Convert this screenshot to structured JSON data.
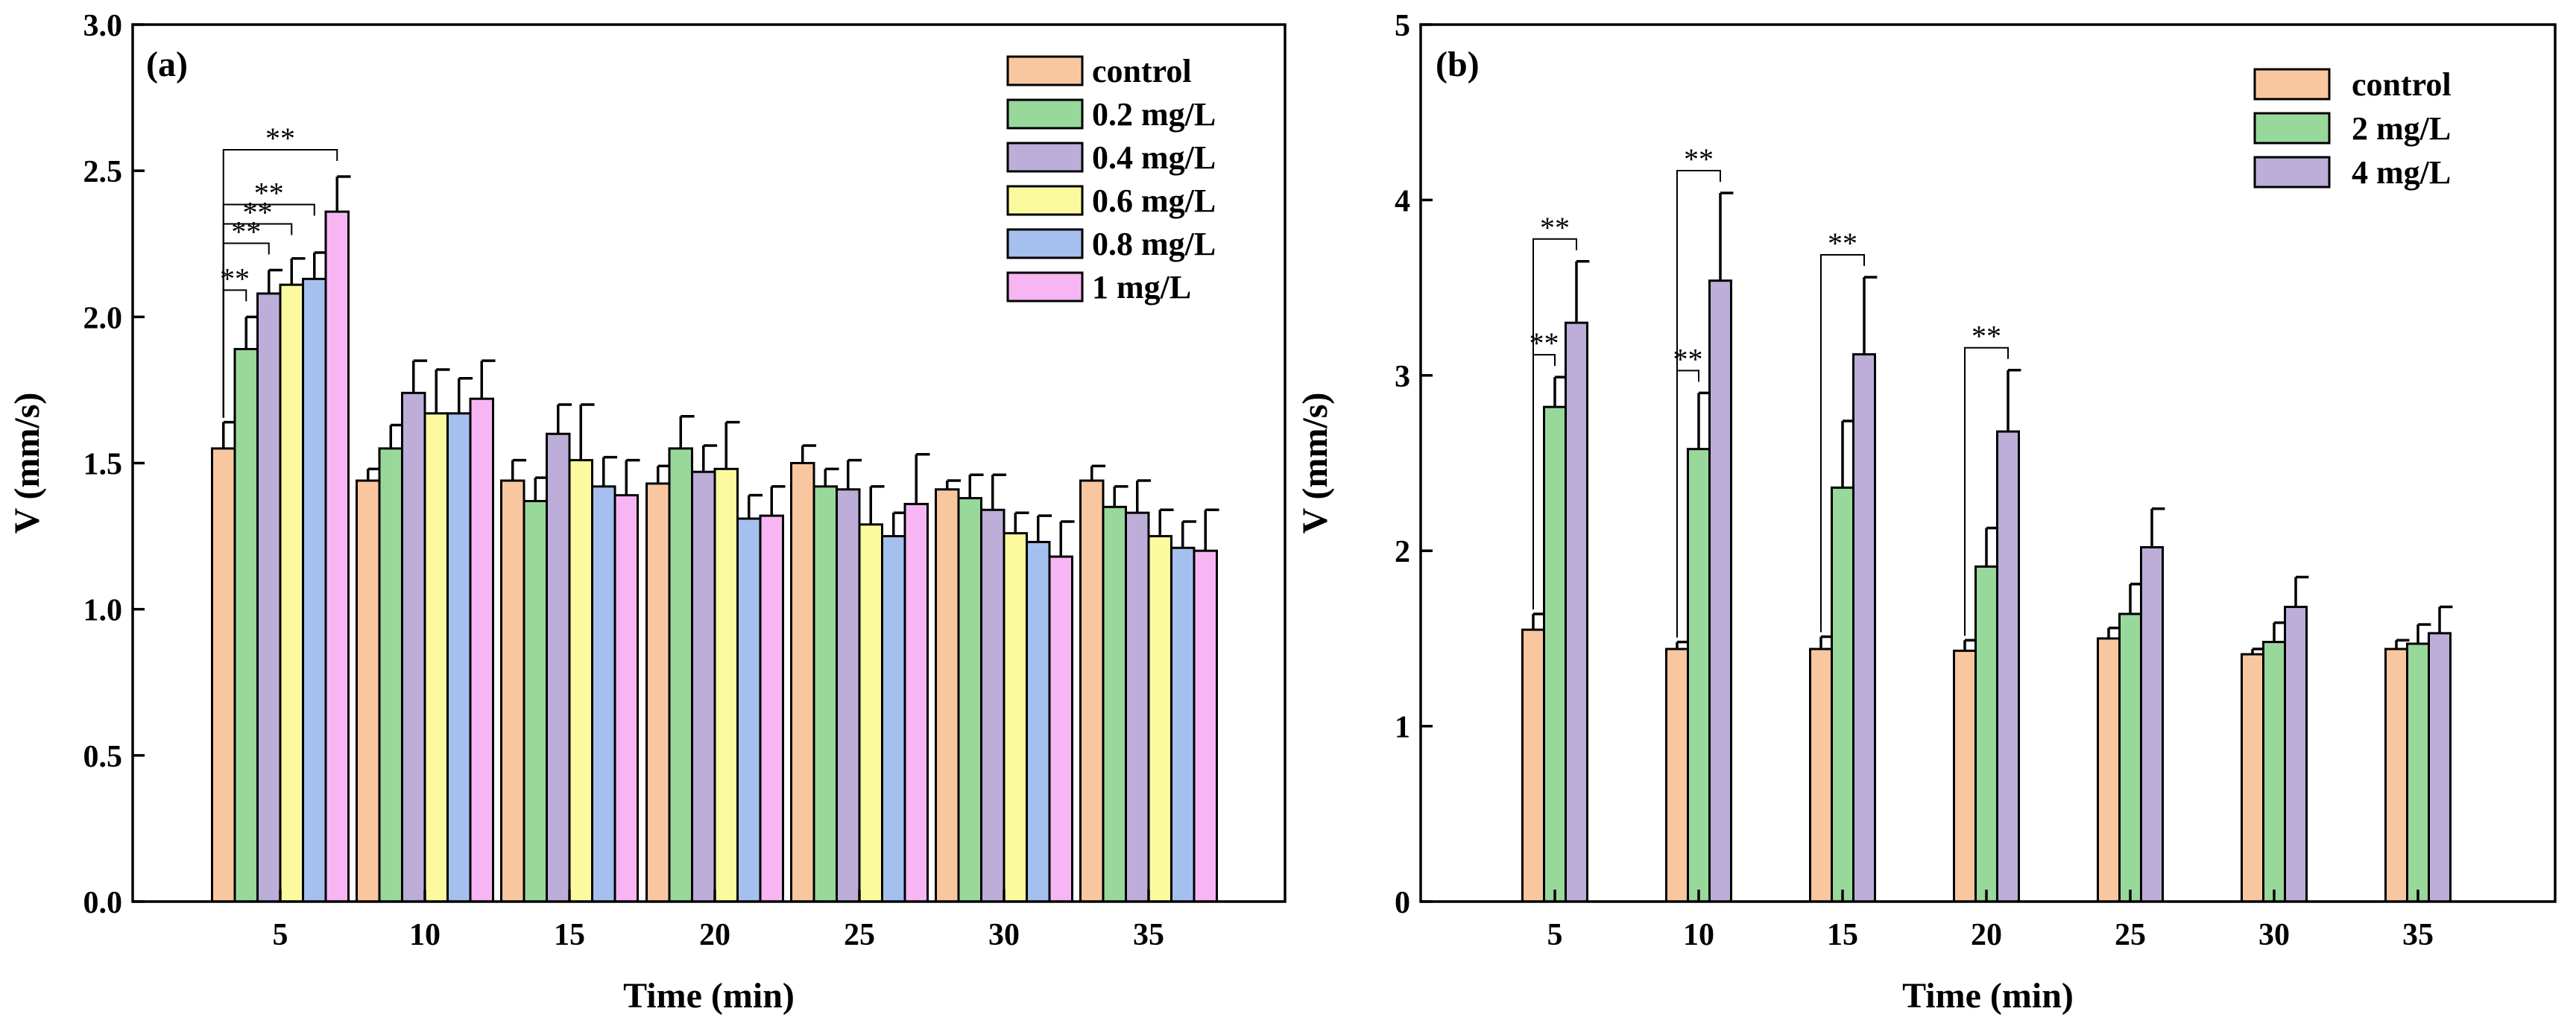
{
  "chart_data": [
    {
      "type": "bar",
      "panel_label": "(a)",
      "xlabel": "Time (min)",
      "ylabel": "V (mm/s)",
      "ylim": [
        0,
        3.0
      ],
      "yticks": [
        "0.0",
        "0.5",
        "1.0",
        "1.5",
        "2.0",
        "2.5",
        "3.0"
      ],
      "categories": [
        "5",
        "10",
        "15",
        "20",
        "25",
        "30",
        "35"
      ],
      "legend_position": "top-right",
      "series": [
        {
          "name": "control",
          "color": "#F9C79F",
          "values": [
            1.55,
            1.44,
            1.44,
            1.43,
            1.5,
            1.41,
            1.44
          ],
          "errors": [
            0.09,
            0.04,
            0.07,
            0.06,
            0.06,
            0.03,
            0.05
          ]
        },
        {
          "name": "0.2 mg/L",
          "color": "#98D89B",
          "values": [
            1.89,
            1.55,
            1.37,
            1.55,
            1.42,
            1.38,
            1.35
          ],
          "errors": [
            0.11,
            0.08,
            0.08,
            0.11,
            0.06,
            0.08,
            0.07
          ]
        },
        {
          "name": "0.4 mg/L",
          "color": "#BCAED9",
          "values": [
            2.08,
            1.74,
            1.6,
            1.47,
            1.41,
            1.34,
            1.33
          ],
          "errors": [
            0.08,
            0.11,
            0.1,
            0.09,
            0.1,
            0.12,
            0.11
          ]
        },
        {
          "name": "0.6 mg/L",
          "color": "#FBFA9F",
          "values": [
            2.11,
            1.67,
            1.51,
            1.48,
            1.29,
            1.26,
            1.25
          ],
          "errors": [
            0.09,
            0.15,
            0.19,
            0.16,
            0.13,
            0.07,
            0.09
          ]
        },
        {
          "name": "0.8 mg/L",
          "color": "#A5C0EE",
          "values": [
            2.13,
            1.67,
            1.42,
            1.31,
            1.25,
            1.23,
            1.21
          ],
          "errors": [
            0.09,
            0.12,
            0.1,
            0.08,
            0.08,
            0.09,
            0.09
          ]
        },
        {
          "name": "1 mg/L",
          "color": "#F7B6F3",
          "values": [
            2.36,
            1.72,
            1.39,
            1.32,
            1.36,
            1.18,
            1.2
          ],
          "errors": [
            0.12,
            0.13,
            0.12,
            0.1,
            0.17,
            0.12,
            0.14
          ]
        }
      ],
      "significance": [
        {
          "category": "5",
          "from_series": 0,
          "to_series": 1,
          "label": "**"
        },
        {
          "category": "5",
          "from_series": 0,
          "to_series": 2,
          "label": "**"
        },
        {
          "category": "5",
          "from_series": 0,
          "to_series": 3,
          "label": "**"
        },
        {
          "category": "5",
          "from_series": 0,
          "to_series": 4,
          "label": "**"
        },
        {
          "category": "5",
          "from_series": 0,
          "to_series": 5,
          "label": "**"
        }
      ]
    },
    {
      "type": "bar",
      "panel_label": "(b)",
      "xlabel": "Time (min)",
      "ylabel": "V (mm/s)",
      "ylim": [
        0,
        5
      ],
      "yticks": [
        "0",
        "1",
        "2",
        "3",
        "4",
        "5"
      ],
      "categories": [
        "5",
        "10",
        "15",
        "20",
        "25",
        "30",
        "35"
      ],
      "legend_position": "top-right",
      "series": [
        {
          "name": "control",
          "color": "#F9C79F",
          "values": [
            1.55,
            1.44,
            1.44,
            1.43,
            1.5,
            1.41,
            1.44
          ],
          "errors": [
            0.09,
            0.04,
            0.07,
            0.06,
            0.06,
            0.03,
            0.05
          ]
        },
        {
          "name": "2 mg/L",
          "color": "#98D89B",
          "values": [
            2.82,
            2.58,
            2.36,
            1.91,
            1.64,
            1.48,
            1.47
          ],
          "errors": [
            0.17,
            0.32,
            0.38,
            0.22,
            0.17,
            0.11,
            0.11
          ]
        },
        {
          "name": "4 mg/L",
          "color": "#BCAED9",
          "values": [
            3.3,
            3.54,
            3.12,
            2.68,
            2.02,
            1.68,
            1.53
          ],
          "errors": [
            0.35,
            0.5,
            0.44,
            0.35,
            0.22,
            0.17,
            0.15
          ]
        }
      ],
      "significance": [
        {
          "category": "5",
          "from_series": 0,
          "to_series": 1,
          "label": "**"
        },
        {
          "category": "5",
          "from_series": 0,
          "to_series": 2,
          "label": "**"
        },
        {
          "category": "10",
          "from_series": 0,
          "to_series": 1,
          "label": "**"
        },
        {
          "category": "10",
          "from_series": 0,
          "to_series": 2,
          "label": "**"
        },
        {
          "category": "15",
          "from_series": 0,
          "to_series": 2,
          "label": "**"
        },
        {
          "category": "20",
          "from_series": 0,
          "to_series": 2,
          "label": "**"
        }
      ]
    }
  ]
}
